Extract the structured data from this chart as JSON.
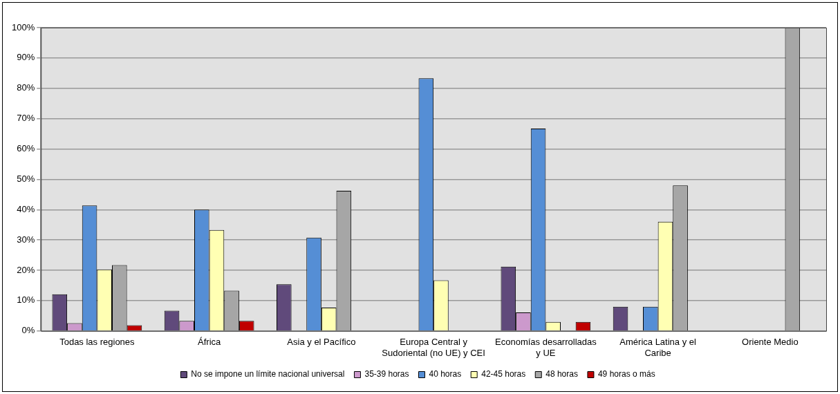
{
  "chart_data": {
    "type": "bar",
    "categories": [
      "Todas las regiones",
      "África",
      "Asia y el Pacífico",
      "Europa Central y Sudoriental (no UE) y CEI",
      "Economías desarrolladas y UE",
      "América Latina y el Caribe",
      "Oriente Medio"
    ],
    "series": [
      {
        "name": "No se impone un límite nacional universal",
        "color": "#604a7b",
        "values": [
          12.1,
          6.7,
          15.4,
          0,
          21.2,
          8.0,
          0
        ]
      },
      {
        "name": "35-39 horas",
        "color": "#cc99cc",
        "values": [
          2.6,
          3.3,
          0,
          0,
          6.1,
          0,
          0
        ]
      },
      {
        "name": "40 horas",
        "color": "#558ed5",
        "values": [
          41.4,
          40.0,
          30.8,
          83.3,
          66.7,
          8.0,
          0
        ]
      },
      {
        "name": "42-45 horas",
        "color": "#ffffb3",
        "values": [
          20.3,
          33.3,
          7.7,
          16.7,
          3.0,
          36.0,
          0
        ]
      },
      {
        "name": "48 horas",
        "color": "#a6a6a6",
        "values": [
          21.7,
          13.3,
          46.2,
          0,
          0,
          48.0,
          100
        ]
      },
      {
        "name": "49 horas o más",
        "color": "#c00000",
        "values": [
          1.9,
          3.3,
          0,
          0,
          3.0,
          0,
          0
        ]
      }
    ],
    "ylim": [
      0,
      100
    ],
    "yticks": [
      {
        "value": 0,
        "label": "0%"
      },
      {
        "value": 10,
        "label": "10%"
      },
      {
        "value": 20,
        "label": "20%"
      },
      {
        "value": 30,
        "label": "30%"
      },
      {
        "value": 40,
        "label": "40%"
      },
      {
        "value": 50,
        "label": "50%"
      },
      {
        "value": 60,
        "label": "60%"
      },
      {
        "value": 70,
        "label": "70%"
      },
      {
        "value": 80,
        "label": "80%"
      },
      {
        "value": 90,
        "label": "90%"
      },
      {
        "value": 100,
        "label": "100%"
      }
    ],
    "grid": "y",
    "legend": "bottom"
  }
}
